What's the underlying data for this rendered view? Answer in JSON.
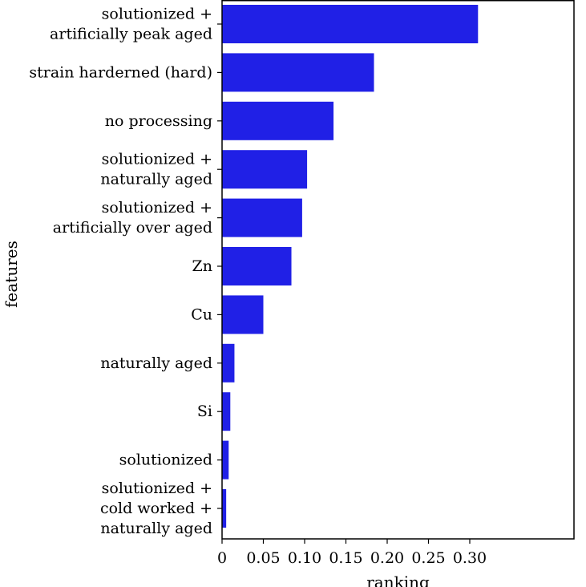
{
  "chart_data": {
    "type": "bar",
    "orientation": "horizontal",
    "xlabel": "ranking",
    "ylabel": "features",
    "xlim": [
      0,
      0.32
    ],
    "xticks": [
      "0",
      "0.05",
      "0.10",
      "0.15",
      "0.20",
      "0.25",
      "0.30"
    ],
    "xtick_values": [
      0,
      0.05,
      0.1,
      0.15,
      0.2,
      0.25,
      0.3
    ],
    "grid": false,
    "bar_color": "#2020e6",
    "categories": [
      {
        "lines": [
          "solutionized +",
          "artificially peak aged"
        ],
        "value": 0.31
      },
      {
        "lines": [
          "strain harderned (hard)"
        ],
        "value": 0.184
      },
      {
        "lines": [
          "no processing"
        ],
        "value": 0.135
      },
      {
        "lines": [
          "solutionized +",
          "naturally aged"
        ],
        "value": 0.103
      },
      {
        "lines": [
          "solutionized +",
          "artificially over aged"
        ],
        "value": 0.097
      },
      {
        "lines": [
          "Zn"
        ],
        "value": 0.084
      },
      {
        "lines": [
          "Cu"
        ],
        "value": 0.05
      },
      {
        "lines": [
          "naturally aged"
        ],
        "value": 0.015
      },
      {
        "lines": [
          "Si"
        ],
        "value": 0.01
      },
      {
        "lines": [
          "solutionized"
        ],
        "value": 0.008
      },
      {
        "lines": [
          "solutionized +",
          "cold worked +",
          "naturally aged"
        ],
        "value": 0.005
      }
    ]
  }
}
